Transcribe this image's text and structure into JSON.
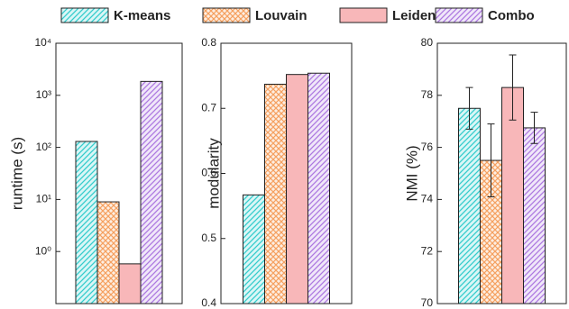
{
  "legend": [
    {
      "name": "K-means",
      "color": "#33cccc",
      "hatch": "diagonal"
    },
    {
      "name": "Louvain",
      "color": "#f5a05f",
      "hatch": "crosshatch"
    },
    {
      "name": "Leiden",
      "color": "#f8b7b9",
      "hatch": "none"
    },
    {
      "name": "Combo",
      "color": "#ac78e0",
      "hatch": "diagonal"
    }
  ],
  "chart_data": [
    {
      "type": "bar",
      "ylabel": "runtime (s)",
      "log": true,
      "values": [
        130,
        9,
        0.58,
        1850
      ],
      "ylim": [
        0.1,
        10000
      ],
      "yticks": [
        {
          "value": 1,
          "label": "10⁰"
        },
        {
          "value": 10,
          "label": "10¹"
        },
        {
          "value": 100,
          "label": "10²"
        },
        {
          "value": 1000,
          "label": "10³"
        },
        {
          "value": 10000,
          "label": "10⁴"
        }
      ]
    },
    {
      "type": "bar",
      "ylabel": "modularity",
      "values": [
        0.567,
        0.737,
        0.752,
        0.754
      ],
      "ylim": [
        0.4,
        0.8
      ],
      "yticks": [
        0.4,
        0.5,
        0.6,
        0.7,
        0.8
      ]
    },
    {
      "type": "bar",
      "ylabel": "NMI (%)",
      "values": [
        77.5,
        75.5,
        78.3,
        76.75
      ],
      "errors": [
        0.8,
        1.4,
        1.25,
        0.6
      ],
      "ylim": [
        70,
        80
      ],
      "yticks": [
        70,
        72,
        74,
        76,
        78,
        80
      ]
    }
  ]
}
